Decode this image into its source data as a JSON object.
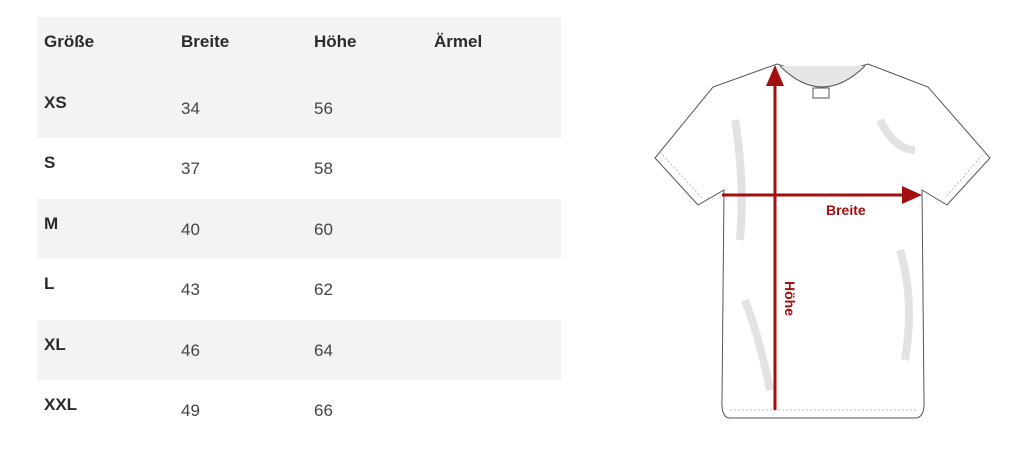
{
  "table": {
    "headers": [
      "Größe",
      "Breite",
      "Höhe",
      "Ärmel"
    ],
    "rows": [
      {
        "size": "XS",
        "breite": "34",
        "hoehe": "56",
        "aermel": ""
      },
      {
        "size": "S",
        "breite": "37",
        "hoehe": "58",
        "aermel": ""
      },
      {
        "size": "M",
        "breite": "40",
        "hoehe": "60",
        "aermel": ""
      },
      {
        "size": "L",
        "breite": "43",
        "hoehe": "62",
        "aermel": ""
      },
      {
        "size": "XL",
        "breite": "46",
        "hoehe": "64",
        "aermel": ""
      },
      {
        "size": "XXL",
        "breite": "49",
        "hoehe": "66",
        "aermel": ""
      }
    ]
  },
  "diagram": {
    "width_label": "Breite",
    "height_label": "Höhe",
    "arrow_color": "#a30f0f"
  }
}
